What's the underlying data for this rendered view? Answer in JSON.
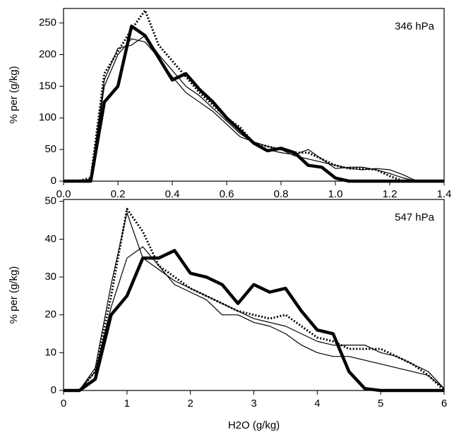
{
  "chart_data": [
    {
      "type": "line",
      "ylabel": "% per (g/kg)",
      "annotation": "346 hPa",
      "x": [
        0,
        0.05,
        0.1,
        0.15,
        0.2,
        0.25,
        0.3,
        0.35,
        0.4,
        0.45,
        0.5,
        0.55,
        0.6,
        0.65,
        0.7,
        0.75,
        0.8,
        0.85,
        0.9,
        0.95,
        1.0,
        1.05,
        1.1,
        1.15,
        1.2,
        1.25,
        1.3,
        1.35,
        1.4
      ],
      "xlim": [
        0,
        1.4
      ],
      "ylim": [
        0,
        273
      ],
      "xticks": [
        {
          "value": 0,
          "label": "0.0"
        },
        0.2,
        0.4,
        0.6,
        0.8,
        {
          "value": 1,
          "label": "1.0"
        },
        1.2,
        1.4
      ],
      "yticks": [
        0,
        50,
        100,
        150,
        200,
        250
      ],
      "series": [
        {
          "color": "#000000",
          "line_width": 4.5,
          "dash": "solid",
          "values": [
            0,
            0,
            0,
            125,
            150,
            245,
            230,
            195,
            160,
            170,
            145,
            125,
            100,
            80,
            60,
            48,
            52,
            45,
            25,
            22,
            5,
            0,
            0,
            0,
            0,
            0,
            0,
            0,
            0
          ]
        },
        {
          "color": "#000000",
          "line_width": 3,
          "dash": "dotted",
          "values": [
            0,
            0,
            5,
            170,
            205,
            240,
            270,
            215,
            190,
            165,
            140,
            120,
            100,
            85,
            60,
            55,
            50,
            45,
            45,
            35,
            25,
            20,
            20,
            18,
            8,
            0,
            0,
            0,
            0
          ]
        },
        {
          "color": "#000000",
          "line_width": 1.2,
          "dash": "solid",
          "values": [
            0,
            0,
            3,
            160,
            210,
            215,
            230,
            200,
            175,
            150,
            135,
            115,
            95,
            75,
            60,
            50,
            45,
            42,
            50,
            35,
            20,
            22,
            22,
            18,
            12,
            5,
            0,
            0,
            0
          ]
        },
        {
          "color": "#000000",
          "line_width": 1.2,
          "dash": "solid",
          "values": [
            0,
            0,
            2,
            150,
            200,
            225,
            220,
            195,
            165,
            140,
            125,
            110,
            90,
            70,
            62,
            55,
            50,
            40,
            35,
            30,
            25,
            20,
            18,
            20,
            18,
            10,
            0,
            0,
            0
          ]
        }
      ]
    },
    {
      "type": "line",
      "ylabel": "% per (g/kg)",
      "xlabel": "H2O (g/kg)",
      "annotation": "547 hPa",
      "x": [
        0,
        0.25,
        0.5,
        0.75,
        1.0,
        1.25,
        1.5,
        1.75,
        2.0,
        2.25,
        2.5,
        2.75,
        3.0,
        3.25,
        3.5,
        3.75,
        4.0,
        4.25,
        4.5,
        4.75,
        5.0,
        5.25,
        5.5,
        5.75,
        6.0
      ],
      "xlim": [
        0,
        6
      ],
      "ylim": [
        0,
        50.5
      ],
      "xticks": [
        0,
        1,
        2,
        3,
        4,
        5,
        6
      ],
      "yticks": [
        0,
        10,
        20,
        30,
        40,
        50
      ],
      "series": [
        {
          "color": "#000000",
          "line_width": 4.5,
          "dash": "solid",
          "values": [
            0,
            0,
            3,
            20,
            25,
            35,
            35,
            37,
            31,
            30,
            28,
            23,
            28,
            26,
            27,
            21,
            16,
            15,
            5,
            0.5,
            0,
            0,
            0,
            0,
            0
          ]
        },
        {
          "color": "#000000",
          "line_width": 3,
          "dash": "dotted",
          "values": [
            0,
            0,
            5,
            25,
            48,
            42,
            33,
            30,
            27,
            25,
            23,
            21,
            20,
            19,
            20,
            17,
            14,
            13,
            11,
            11,
            11,
            9,
            7,
            4,
            0
          ]
        },
        {
          "color": "#000000",
          "line_width": 1.2,
          "dash": "solid",
          "values": [
            0,
            0,
            6,
            28,
            47,
            35,
            32,
            29,
            27,
            25,
            23,
            21,
            19,
            18,
            17,
            15,
            13,
            12,
            12,
            12,
            10,
            9,
            7,
            5,
            0.5
          ]
        },
        {
          "color": "#000000",
          "line_width": 1.2,
          "dash": "solid",
          "values": [
            0,
            0,
            5,
            22,
            35,
            38,
            33,
            28,
            26,
            24,
            20,
            20,
            18,
            17,
            15,
            12,
            10,
            9,
            9,
            8,
            7,
            6,
            5,
            4,
            0.5
          ]
        }
      ]
    }
  ]
}
